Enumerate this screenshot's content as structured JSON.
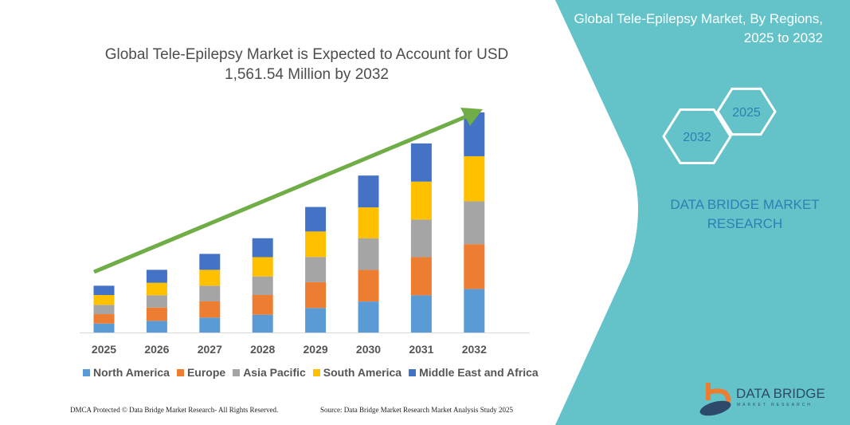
{
  "chart_data": {
    "type": "bar",
    "stacked": true,
    "title": "Global Tele-Epilepsy Market is Expected to Account for USD 1,561.54 Million by 2032",
    "categories": [
      "2025",
      "2026",
      "2027",
      "2028",
      "2029",
      "2030",
      "2031",
      "2032"
    ],
    "series": [
      {
        "name": "North America",
        "color": "#5b9bd5",
        "values": [
          64,
          83,
          106,
          126,
          174,
          220,
          264,
          309
        ]
      },
      {
        "name": "Europe",
        "color": "#ed7d31",
        "values": [
          66,
          94,
          115,
          140,
          183,
          224,
          271,
          318
        ]
      },
      {
        "name": "Asia Pacific",
        "color": "#a5a5a5",
        "values": [
          66,
          87,
          111,
          132,
          179,
          224,
          266,
          304
        ]
      },
      {
        "name": "South America",
        "color": "#ffc000",
        "values": [
          70,
          89,
          113,
          137,
          181,
          220,
          270,
          320
        ]
      },
      {
        "name": "Middle East and Africa",
        "color": "#4472c4",
        "values": [
          66,
          92,
          113,
          134,
          174,
          226,
          271,
          311
        ]
      }
    ],
    "ylim": [
      0,
      1562
    ],
    "y_axis_visible": false,
    "grid": false,
    "legend": "bottom",
    "trend_arrow_color": "#70ad47"
  },
  "side_panel": {
    "title": "Global Tele-Epilepsy Market, By Regions, 2025 to 2032",
    "hex_years": [
      "2025",
      "2032"
    ],
    "brand": "DATA BRIDGE MARKET RESEARCH",
    "color": "#63c3c8"
  },
  "logo": {
    "text": "DATA BRIDGE",
    "subtext": "MARKET RESEARCH"
  },
  "footer": {
    "left": "DMCA Protected © Data Bridge Market Research-  All Rights Reserved.",
    "right": "Source: Data Bridge Market Research  Market Analysis Study 2025"
  }
}
